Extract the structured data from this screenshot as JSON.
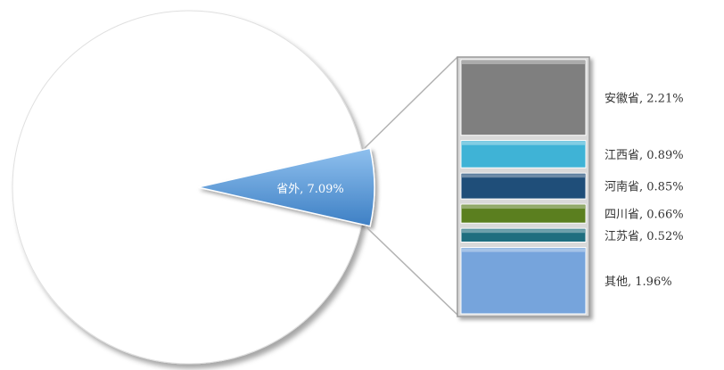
{
  "chart_data": {
    "type": "bar-of-pie",
    "pie": {
      "slices": [
        {
          "label": "省外",
          "value": 7.09,
          "display": "省外, 7.09%",
          "color": "#4f93d3"
        }
      ]
    },
    "breakdown": {
      "stack_order_top_to_bottom": [
        {
          "label": "安徽省",
          "value": 2.21,
          "display": "安徽省, 2.21%",
          "color": "#7f7f7f"
        },
        {
          "label": "江西省",
          "value": 0.89,
          "display": "江西省, 0.89%",
          "color": "#3fb3d6"
        },
        {
          "label": "河南省",
          "value": 0.85,
          "display": "河南省, 0.85%",
          "color": "#1f4e79"
        },
        {
          "label": "四川省",
          "value": 0.66,
          "display": "四川省, 0.66%",
          "color": "#5b7f1f"
        },
        {
          "label": "江苏省",
          "value": 0.52,
          "display": "江苏省, 0.52%",
          "color": "#1f6e7f"
        },
        {
          "label": "其他",
          "value": 1.96,
          "display": "其他, 1.96%",
          "color": "#76a4dc"
        }
      ]
    },
    "legend": "none",
    "grid": false
  }
}
